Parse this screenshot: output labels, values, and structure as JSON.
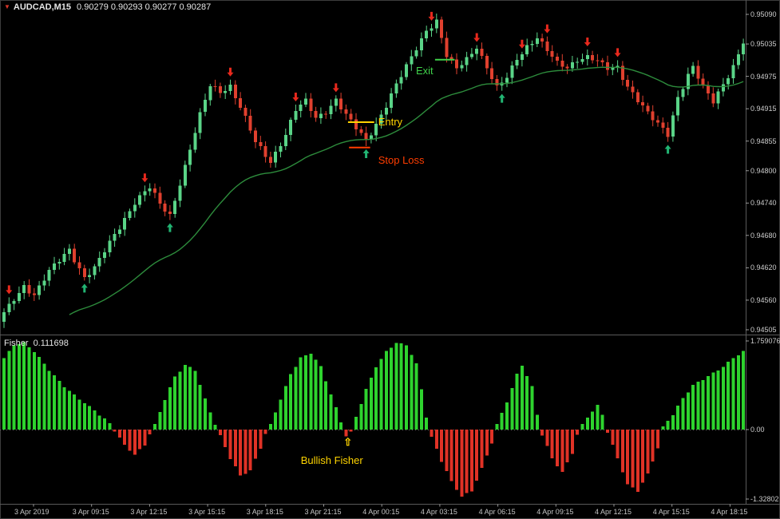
{
  "window": {
    "symbol": "AUDCAD,M15",
    "quotes": "0.90279 0.90293 0.90277 0.90287"
  },
  "colors": {
    "background": "#000000",
    "bull": "#5ad487",
    "bear": "#e0402e",
    "ma_line": "#2d8c3c",
    "axis_text": "#cdcdcd",
    "separator": "#5a5a5a",
    "sell_arrow": "#e8291d",
    "buy_arrow": "#22b573",
    "fisher_up": "#2ed32e",
    "fisher_down": "#e03226"
  },
  "chart_data": [
    {
      "type": "candlestick",
      "symbol": "AUDCAD",
      "timeframe": "M15",
      "candle_count": 148,
      "price_axis": {
        "labels": [
          "0.95090",
          "0.95035",
          "0.94975",
          "0.94915",
          "0.94855",
          "0.94800",
          "0.94740",
          "0.94680",
          "0.94620",
          "0.94560",
          "0.94505"
        ],
        "top_price": 0.9509,
        "bottom_price": 0.94505
      },
      "price_path_anchors": [
        [
          0,
          0.94535
        ],
        [
          2,
          0.94562
        ],
        [
          4,
          0.94588
        ],
        [
          6,
          0.9457
        ],
        [
          9,
          0.94612
        ],
        [
          13,
          0.94655
        ],
        [
          16,
          0.94602
        ],
        [
          18,
          0.94618
        ],
        [
          22,
          0.94682
        ],
        [
          26,
          0.94742
        ],
        [
          29,
          0.94768
        ],
        [
          31,
          0.94738
        ],
        [
          33,
          0.94718
        ],
        [
          36,
          0.94808
        ],
        [
          39,
          0.94902
        ],
        [
          41,
          0.94958
        ],
        [
          43,
          0.94948
        ],
        [
          45,
          0.94958
        ],
        [
          47,
          0.94918
        ],
        [
          50,
          0.94852
        ],
        [
          53,
          0.94818
        ],
        [
          56,
          0.94868
        ],
        [
          58,
          0.94912
        ],
        [
          60,
          0.94928
        ],
        [
          62,
          0.94898
        ],
        [
          64,
          0.94912
        ],
        [
          66,
          0.94932
        ],
        [
          68,
          0.94902
        ],
        [
          70,
          0.94878
        ],
        [
          72,
          0.94856
        ],
        [
          74,
          0.94888
        ],
        [
          76,
          0.94922
        ],
        [
          78,
          0.94958
        ],
        [
          80,
          0.94992
        ],
        [
          82,
          0.95028
        ],
        [
          84,
          0.95062
        ],
        [
          86,
          0.95078
        ],
        [
          88,
          0.95012
        ],
        [
          90,
          0.94988
        ],
        [
          92,
          0.95008
        ],
        [
          94,
          0.95032
        ],
        [
          96,
          0.94992
        ],
        [
          98,
          0.94952
        ],
        [
          100,
          0.94972
        ],
        [
          102,
          0.95008
        ],
        [
          104,
          0.95032
        ],
        [
          106,
          0.95048
        ],
        [
          108,
          0.95022
        ],
        [
          110,
          0.94998
        ],
        [
          112,
          0.94992
        ],
        [
          114,
          0.95008
        ],
        [
          116,
          0.95012
        ],
        [
          118,
          0.95002
        ],
        [
          120,
          0.94988
        ],
        [
          122,
          0.94992
        ],
        [
          124,
          0.94958
        ],
        [
          126,
          0.94932
        ],
        [
          128,
          0.94905
        ],
        [
          130,
          0.94885
        ],
        [
          132,
          0.94868
        ],
        [
          134,
          0.94938
        ],
        [
          136,
          0.94978
        ],
        [
          137,
          0.94992
        ],
        [
          139,
          0.94952
        ],
        [
          141,
          0.94928
        ],
        [
          143,
          0.94962
        ],
        [
          145,
          0.94995
        ],
        [
          147,
          0.95038
        ]
      ],
      "moving_average": {
        "description": "green moving-average line below price",
        "color": "#2d8c3c"
      },
      "arrows": {
        "sell_indices": [
          1,
          28,
          45,
          58,
          66,
          85,
          94,
          103,
          108,
          116,
          122
        ],
        "buy_indices": [
          16,
          33,
          72,
          99,
          132
        ]
      },
      "time_axis": {
        "labels": [
          "3 Apr 2019",
          "3 Apr 09:15",
          "3 Apr 12:15",
          "3 Apr 15:15",
          "3 Apr 18:15",
          "3 Apr 21:15",
          "4 Apr 00:15",
          "4 Apr 03:15",
          "4 Apr 06:15",
          "4 Apr 09:15",
          "4 Apr 12:15",
          "4 Apr 15:15",
          "4 Apr 18:15"
        ]
      }
    },
    {
      "type": "bar",
      "title": "Fisher",
      "current_value": "0.111698",
      "axis_labels": [
        "1.759076",
        "0.00",
        "-1.32802"
      ],
      "value_anchors": [
        [
          0,
          1.42
        ],
        [
          2,
          1.68
        ],
        [
          4,
          1.72
        ],
        [
          6,
          1.55
        ],
        [
          9,
          1.18
        ],
        [
          12,
          0.85
        ],
        [
          15,
          0.6
        ],
        [
          18,
          0.38
        ],
        [
          21,
          0.12
        ],
        [
          22,
          -0.02
        ],
        [
          24,
          -0.3
        ],
        [
          26,
          -0.48
        ],
        [
          28,
          -0.3
        ],
        [
          29,
          -0.08
        ],
        [
          30,
          0.1
        ],
        [
          32,
          0.6
        ],
        [
          34,
          1.05
        ],
        [
          36,
          1.28
        ],
        [
          38,
          1.18
        ],
        [
          40,
          0.6
        ],
        [
          42,
          0.1
        ],
        [
          43,
          -0.12
        ],
        [
          45,
          -0.55
        ],
        [
          47,
          -0.88
        ],
        [
          49,
          -0.78
        ],
        [
          51,
          -0.35
        ],
        [
          52,
          -0.08
        ],
        [
          53,
          0.1
        ],
        [
          55,
          0.6
        ],
        [
          57,
          1.1
        ],
        [
          59,
          1.42
        ],
        [
          61,
          1.52
        ],
        [
          63,
          1.25
        ],
        [
          65,
          0.7
        ],
        [
          67,
          0.15
        ],
        [
          68,
          -0.12
        ],
        [
          69,
          -0.05
        ],
        [
          70,
          0.25
        ],
        [
          72,
          0.8
        ],
        [
          74,
          1.25
        ],
        [
          76,
          1.55
        ],
        [
          78,
          1.72
        ],
        [
          80,
          1.68
        ],
        [
          82,
          1.3
        ],
        [
          83,
          0.8
        ],
        [
          84,
          0.25
        ],
        [
          85,
          -0.15
        ],
        [
          87,
          -0.6
        ],
        [
          89,
          -1.0
        ],
        [
          91,
          -1.28
        ],
        [
          93,
          -1.18
        ],
        [
          95,
          -0.75
        ],
        [
          97,
          -0.25
        ],
        [
          98,
          0.1
        ],
        [
          100,
          0.55
        ],
        [
          102,
          1.1
        ],
        [
          103,
          1.28
        ],
        [
          105,
          0.85
        ],
        [
          106,
          0.3
        ],
        [
          107,
          -0.1
        ],
        [
          109,
          -0.55
        ],
        [
          111,
          -0.82
        ],
        [
          113,
          -0.45
        ],
        [
          114,
          -0.1
        ],
        [
          115,
          0.1
        ],
        [
          116,
          0.25
        ],
        [
          118,
          0.48
        ],
        [
          119,
          0.3
        ],
        [
          120,
          -0.05
        ],
        [
          122,
          -0.55
        ],
        [
          124,
          -1.05
        ],
        [
          126,
          -1.18
        ],
        [
          128,
          -0.85
        ],
        [
          130,
          -0.35
        ],
        [
          131,
          0.05
        ],
        [
          133,
          0.3
        ],
        [
          135,
          0.62
        ],
        [
          137,
          0.88
        ],
        [
          139,
          1.0
        ],
        [
          141,
          1.12
        ],
        [
          143,
          1.25
        ],
        [
          145,
          1.42
        ],
        [
          147,
          1.55
        ]
      ]
    }
  ],
  "annotations": {
    "entry": {
      "label": "Entry",
      "price": 0.9489,
      "line_from_i": 68.4,
      "line_to_i": 73.6,
      "label_i": 74.4,
      "color": "#ffd400"
    },
    "stop_loss": {
      "label": "Stop Loss",
      "price": 0.94843,
      "line_from_i": 68.6,
      "line_to_i": 72.8,
      "label_i": 74.4,
      "color": "#ff3d00"
    },
    "exit": {
      "label": "Exit",
      "price": 0.95006,
      "line_from_i": 85.7,
      "line_to_i": 89.6,
      "label_i": 81.9,
      "color": "#3fd24a"
    },
    "bullish_fisher": {
      "label": "Bullish Fisher",
      "arrow_glyph": "⇧",
      "arrow_i": 68.3,
      "label_i": 59.0,
      "color": "#ffd400"
    }
  }
}
